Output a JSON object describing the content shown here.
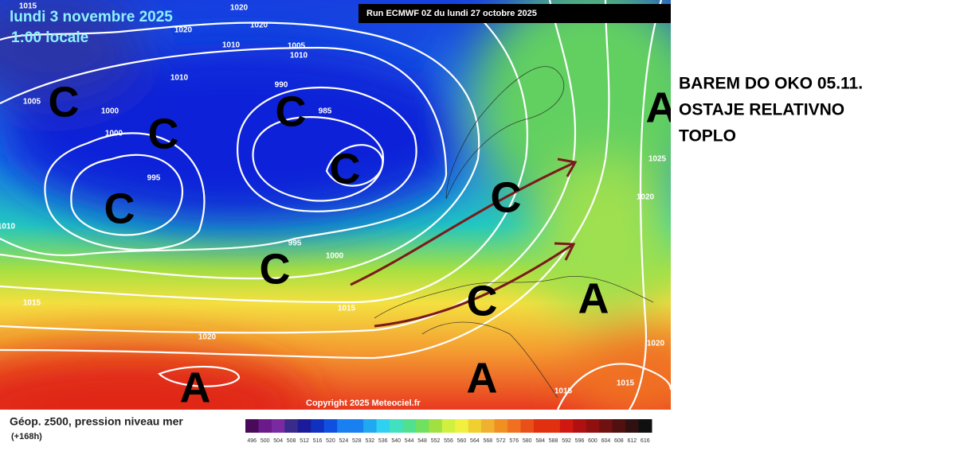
{
  "map": {
    "date": "lundi 3 novembre 2025",
    "time": "1:00 locale",
    "run": "Run ECMWF 0Z du lundi 27 octobre 2025",
    "copyright": "Copyright 2025 Meteociel.fr",
    "isobar_labels": [
      1015,
      1020,
      1020,
      1020,
      1010,
      1005,
      1010,
      1010,
      1005,
      1000,
      1000,
      990,
      985,
      995,
      1025,
      1020,
      995,
      1000,
      1015,
      1015,
      1020,
      1020,
      1015,
      1015,
      1010
    ],
    "centers": [
      "C",
      "C",
      "C",
      "C",
      "C",
      "C",
      "C",
      "C",
      "A",
      "A",
      "A",
      "A"
    ]
  },
  "legend": {
    "title": "Géop. z500, pression niveau mer",
    "lead": "(+168h)",
    "scale": [
      496,
      500,
      504,
      508,
      512,
      516,
      520,
      524,
      528,
      532,
      536,
      540,
      544,
      548,
      552,
      556,
      560,
      564,
      568,
      572,
      576,
      580,
      584,
      588,
      592,
      596,
      600,
      604,
      608,
      612,
      616
    ]
  },
  "annotation": [
    "BAREM DO OKO 05.11.",
    "OSTAJE RELATIVNO",
    "TOPLO"
  ]
}
